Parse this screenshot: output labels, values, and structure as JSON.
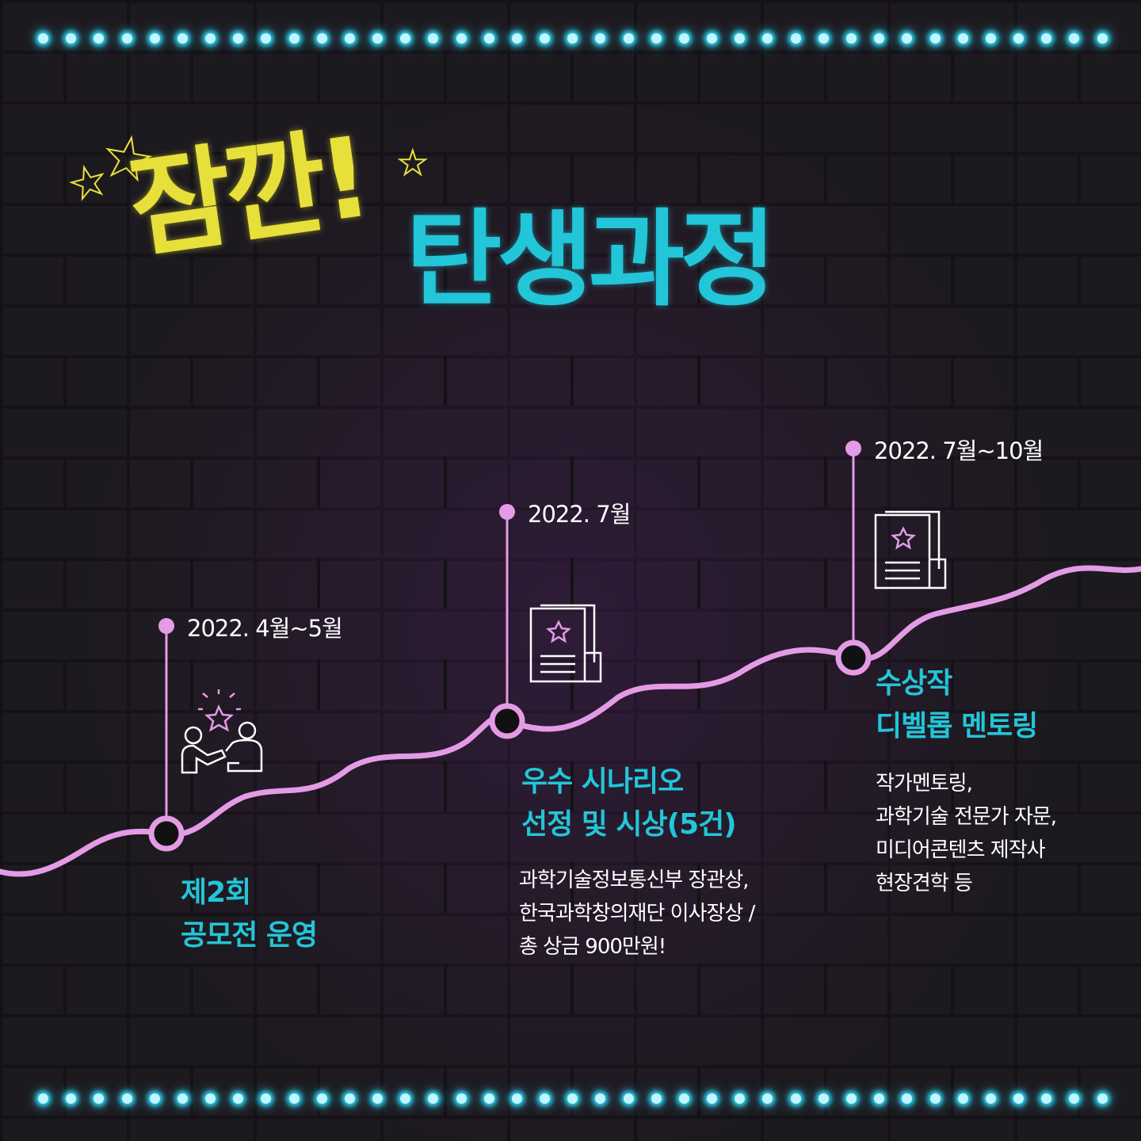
{
  "title": {
    "part1": "잠깐!",
    "part2": "탄생과정"
  },
  "colors": {
    "title_yellow": "#e8e03a",
    "accent_cyan": "#22c6d8",
    "timeline_pink": "#e49be6",
    "lights": "#2fd4f0"
  },
  "timeline": [
    {
      "date": "2022. 4월~5월",
      "heading": [
        "제2회",
        "공모전 운영"
      ],
      "description": [],
      "icon": "people-star-icon"
    },
    {
      "date": "2022. 7월",
      "heading": [
        "우수 시나리오",
        "선정 및 시상(5건)"
      ],
      "description": [
        "과학기술정보통신부 장관상,",
        "한국과학창의재단 이사장상 /",
        "총 상금 900만원!"
      ],
      "icon": "document-star-icon"
    },
    {
      "date": "2022. 7월~10월",
      "heading": [
        "수상작",
        "디벨롭 멘토링"
      ],
      "description": [
        "작가멘토링,",
        "과학기술 전문가 자문,",
        "미디어콘텐츠 제작사",
        "현장견학 등"
      ],
      "icon": "document-star-icon"
    }
  ]
}
